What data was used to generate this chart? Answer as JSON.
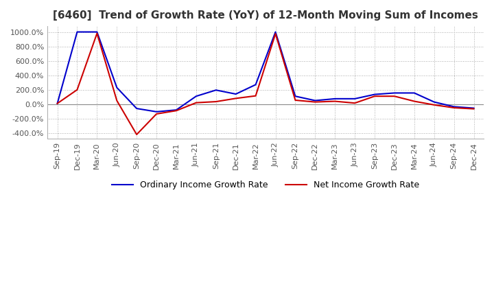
{
  "title": "[6460]  Trend of Growth Rate (YoY) of 12-Month Moving Sum of Incomes",
  "ylim": [
    -480,
    1080
  ],
  "yticks": [
    -400,
    -200,
    0,
    200,
    400,
    600,
    800,
    1000
  ],
  "ytick_labels": [
    "-400.0%",
    "-200.0%",
    "0.0%",
    "200.0%",
    "400.0%",
    "600.0%",
    "800.0%",
    "1000.0%"
  ],
  "background_color": "#ffffff",
  "plot_bg_color": "#ffffff",
  "grid_color": "#aaaaaa",
  "ordinary_color": "#0000cc",
  "net_color": "#cc0000",
  "ordinary_label": "Ordinary Income Growth Rate",
  "net_label": "Net Income Growth Rate",
  "x_labels": [
    "Sep-19",
    "Dec-19",
    "Mar-20",
    "Jun-20",
    "Sep-20",
    "Dec-20",
    "Mar-21",
    "Jun-21",
    "Sep-21",
    "Dec-21",
    "Mar-22",
    "Jun-22",
    "Sep-22",
    "Dec-22",
    "Mar-23",
    "Jun-23",
    "Sep-23",
    "Dec-23",
    "Mar-24",
    "Jun-24",
    "Sep-24",
    "Dec-24"
  ],
  "ordinary_values": [
    10,
    1000,
    1000,
    230,
    -60,
    -105,
    -80,
    110,
    195,
    140,
    270,
    1000,
    110,
    50,
    75,
    75,
    135,
    155,
    155,
    30,
    -35,
    -55
  ],
  "net_values": [
    10,
    200,
    980,
    50,
    -420,
    -135,
    -90,
    20,
    35,
    80,
    115,
    975,
    55,
    30,
    40,
    15,
    110,
    110,
    40,
    -10,
    -50,
    -65
  ],
  "title_fontsize": 11,
  "tick_fontsize": 8,
  "legend_fontsize": 9
}
